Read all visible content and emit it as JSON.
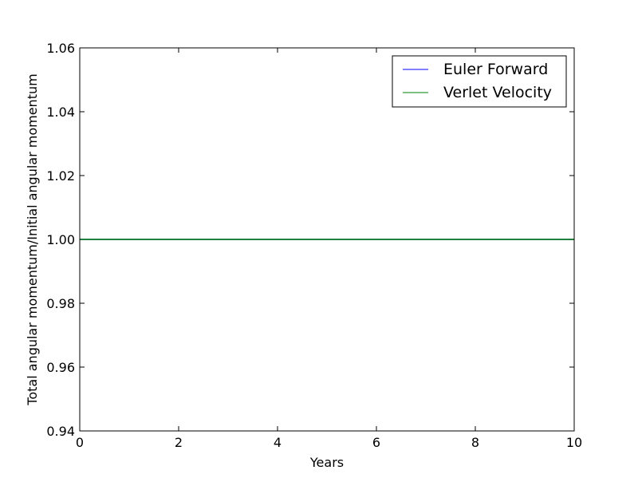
{
  "chart_data": {
    "type": "line",
    "title": "",
    "xlabel": "Years",
    "ylabel": "Total angular momentum/Initial angular momentum",
    "xlim": [
      0,
      10
    ],
    "ylim": [
      0.94,
      1.06
    ],
    "xticks": [
      0,
      2,
      4,
      6,
      8,
      10
    ],
    "yticks": [
      0.94,
      0.96,
      0.98,
      1.0,
      1.02,
      1.04,
      1.06
    ],
    "xtick_labels": [
      "0",
      "2",
      "4",
      "6",
      "8",
      "10"
    ],
    "ytick_labels": [
      "0.94",
      "0.96",
      "0.98",
      "1.00",
      "1.02",
      "1.04",
      "1.06"
    ],
    "grid": false,
    "legend": {
      "placement": "top-right",
      "entries": [
        "Euler Forward",
        "Verlet Velocity"
      ]
    },
    "series": [
      {
        "name": "Euler Forward",
        "color": "#0000ff",
        "x": [
          0,
          10
        ],
        "y": [
          1.0,
          1.0
        ]
      },
      {
        "name": "Verlet Velocity",
        "color": "#008000",
        "x": [
          0,
          10
        ],
        "y": [
          1.0,
          1.0
        ]
      }
    ]
  }
}
